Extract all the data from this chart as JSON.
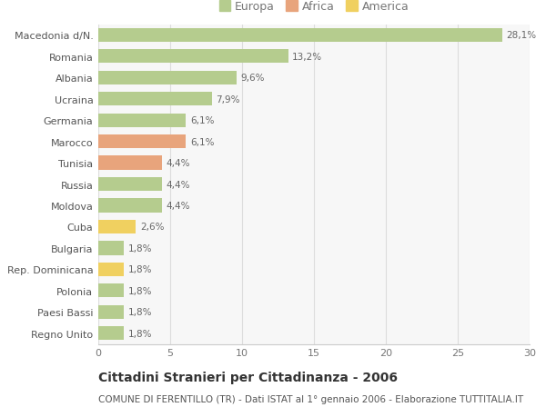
{
  "categories": [
    "Macedonia d/N.",
    "Romania",
    "Albania",
    "Ucraina",
    "Germania",
    "Marocco",
    "Tunisia",
    "Russia",
    "Moldova",
    "Cuba",
    "Bulgaria",
    "Rep. Dominicana",
    "Polonia",
    "Paesi Bassi",
    "Regno Unito"
  ],
  "values": [
    28.1,
    13.2,
    9.6,
    7.9,
    6.1,
    6.1,
    4.4,
    4.4,
    4.4,
    2.6,
    1.8,
    1.8,
    1.8,
    1.8,
    1.8
  ],
  "labels": [
    "28,1%",
    "13,2%",
    "9,6%",
    "7,9%",
    "6,1%",
    "6,1%",
    "4,4%",
    "4,4%",
    "4,4%",
    "2,6%",
    "1,8%",
    "1,8%",
    "1,8%",
    "1,8%",
    "1,8%"
  ],
  "continent": [
    "Europa",
    "Europa",
    "Europa",
    "Europa",
    "Europa",
    "Africa",
    "Africa",
    "Europa",
    "Europa",
    "America",
    "Europa",
    "America",
    "Europa",
    "Europa",
    "Europa"
  ],
  "colors": {
    "Europa": "#b5cc8e",
    "Africa": "#e8a47c",
    "America": "#f0d060"
  },
  "xlim": [
    0,
    30
  ],
  "xticks": [
    0,
    5,
    10,
    15,
    20,
    25,
    30
  ],
  "title": "Cittadini Stranieri per Cittadinanza - 2006",
  "subtitle": "COMUNE DI FERENTILLO (TR) - Dati ISTAT al 1° gennaio 2006 - Elaborazione TUTTITALIA.IT",
  "background_color": "#ffffff",
  "plot_bg_color": "#f7f7f7",
  "grid_color": "#dddddd",
  "bar_height": 0.65,
  "title_fontsize": 10,
  "subtitle_fontsize": 7.5,
  "label_fontsize": 7.5,
  "tick_fontsize": 8,
  "legend_fontsize": 9
}
